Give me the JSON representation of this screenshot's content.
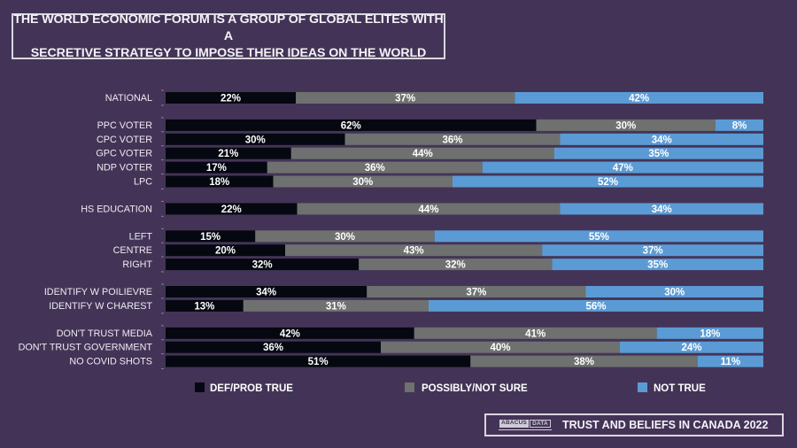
{
  "title": {
    "line1": "THE WORLD ECONOMIC FORUM IS A GROUP OF GLOBAL ELITES WITH A",
    "line2": "SECRETIVE STRATEGY TO IMPOSE THEIR IDEAS ON THE WORLD"
  },
  "footer": {
    "logo_left": "ABACUS",
    "logo_right": "DATA",
    "text": "TRUST AND BELIEFS IN CANADA 2022"
  },
  "colors": {
    "background": "#433457",
    "def_prob_true": "#050810",
    "possibly_not_sure": "#6e716f",
    "not_true": "#5b9bd5"
  },
  "chart_data": {
    "type": "bar",
    "orientation": "horizontal",
    "stacked": true,
    "normalized": true,
    "title": "THE WORLD ECONOMIC FORUM IS A GROUP OF GLOBAL ELITES WITH A SECRETIVE STRATEGY TO IMPOSE THEIR IDEAS ON THE WORLD",
    "xlabel": "",
    "ylabel": "",
    "legend_position": "bottom",
    "grid": false,
    "value_suffix": "%",
    "categories": [
      "NATIONAL",
      "PPC VOTER",
      "CPC VOTER",
      "GPC VOTER",
      "NDP VOTER",
      "LPC",
      "HS EDUCATION",
      "LEFT",
      "CENTRE",
      "RIGHT",
      "IDENTIFY W POILIEVRE",
      "IDENTIFY W CHAREST",
      "DON'T TRUST MEDIA",
      "DON'T TRUST GOVERNMENT",
      "NO COVID SHOTS"
    ],
    "groups": [
      [
        "NATIONAL"
      ],
      [
        "PPC VOTER",
        "CPC VOTER",
        "GPC VOTER",
        "NDP VOTER",
        "LPC"
      ],
      [
        "HS EDUCATION"
      ],
      [
        "LEFT",
        "CENTRE",
        "RIGHT"
      ],
      [
        "IDENTIFY W POILIEVRE",
        "IDENTIFY W CHAREST"
      ],
      [
        "DON'T TRUST MEDIA",
        "DON'T TRUST GOVERNMENT",
        "NO COVID SHOTS"
      ]
    ],
    "series": [
      {
        "name": "DEF/PROB TRUE",
        "color": "#050810",
        "values": [
          22,
          62,
          30,
          21,
          17,
          18,
          22,
          15,
          20,
          32,
          34,
          13,
          42,
          36,
          51
        ]
      },
      {
        "name": "POSSIBLY/NOT SURE",
        "color": "#6e716f",
        "values": [
          37,
          30,
          36,
          44,
          36,
          30,
          44,
          30,
          43,
          32,
          37,
          31,
          41,
          40,
          38
        ]
      },
      {
        "name": "NOT TRUE",
        "color": "#5b9bd5",
        "values": [
          42,
          8,
          34,
          35,
          47,
          52,
          34,
          55,
          37,
          35,
          30,
          56,
          18,
          24,
          11
        ]
      }
    ]
  }
}
